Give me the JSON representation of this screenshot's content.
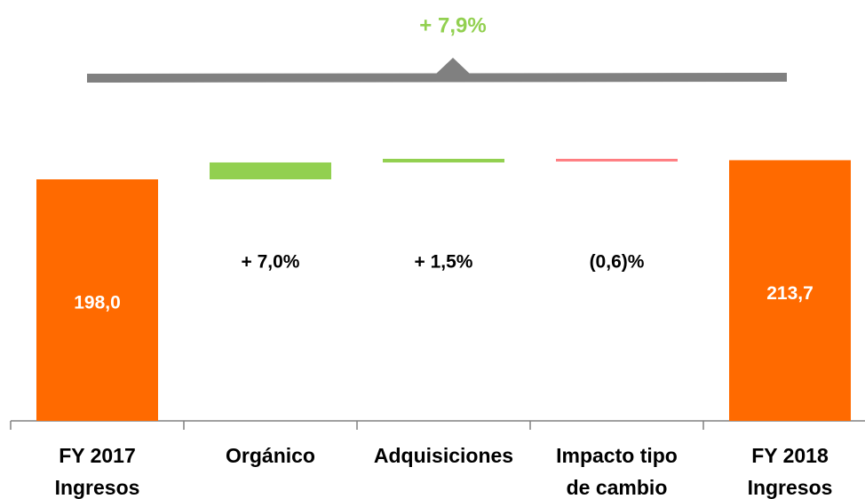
{
  "chart_data": {
    "type": "waterfall",
    "annotation": "+ 7,9%",
    "categories": [
      [
        "FY 2017",
        "Ingresos"
      ],
      [
        "Orgánico"
      ],
      [
        "Adquisiciones"
      ],
      [
        "Impacto tipo",
        "de cambio"
      ],
      [
        "FY 2018",
        "Ingresos"
      ]
    ],
    "measure": [
      "absolute",
      "relative_percent",
      "relative_percent",
      "relative_percent",
      "absolute"
    ],
    "values": [
      198.0,
      7.0,
      1.5,
      -0.6,
      213.7
    ],
    "value_labels": [
      "198,0",
      "+ 7,0%",
      "+ 1,5%",
      "(0,6)%",
      "213,7"
    ],
    "colors": {
      "total": "#ff6a00",
      "increase": "#92d050",
      "decrease": "#ff7c80",
      "annotation": "#92d050"
    }
  }
}
